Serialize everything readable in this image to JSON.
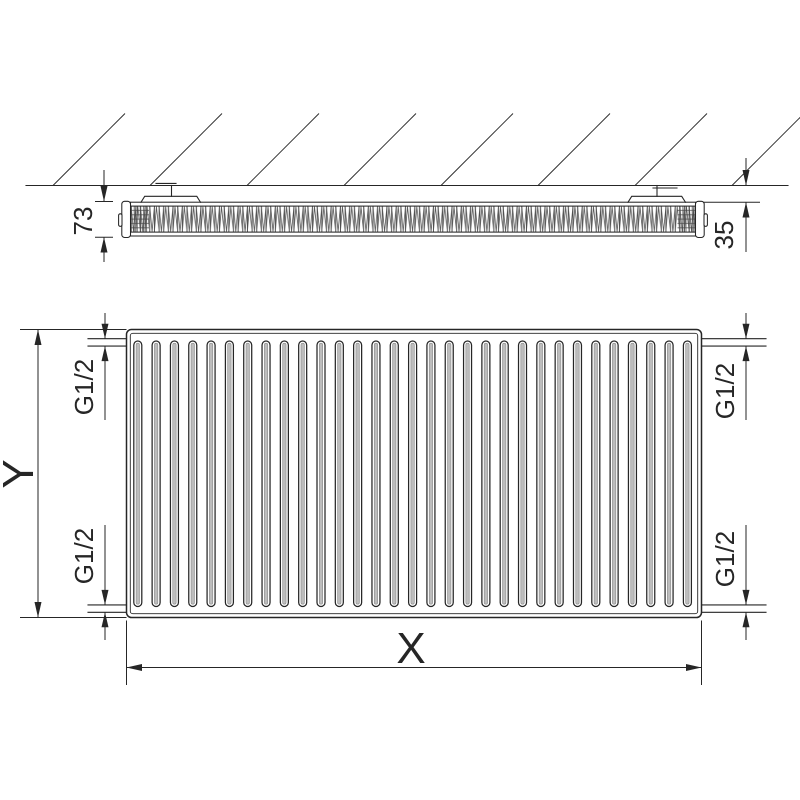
{
  "top_view": {
    "wall_hatch_count": 8,
    "bracket_count": 2,
    "dimensions": {
      "depth": "73",
      "wall_distance": "35"
    }
  },
  "front_view": {
    "channel_count": 31,
    "dimensions": {
      "width": "X",
      "height": "Y"
    },
    "connections": {
      "top_left": "G1/2",
      "top_right": "G1/2",
      "bottom_left": "G1/2",
      "bottom_right": "G1/2"
    }
  },
  "colors": {
    "line": "#262626",
    "channel_shade": "#bdbdbd",
    "background": "#ffffff"
  }
}
